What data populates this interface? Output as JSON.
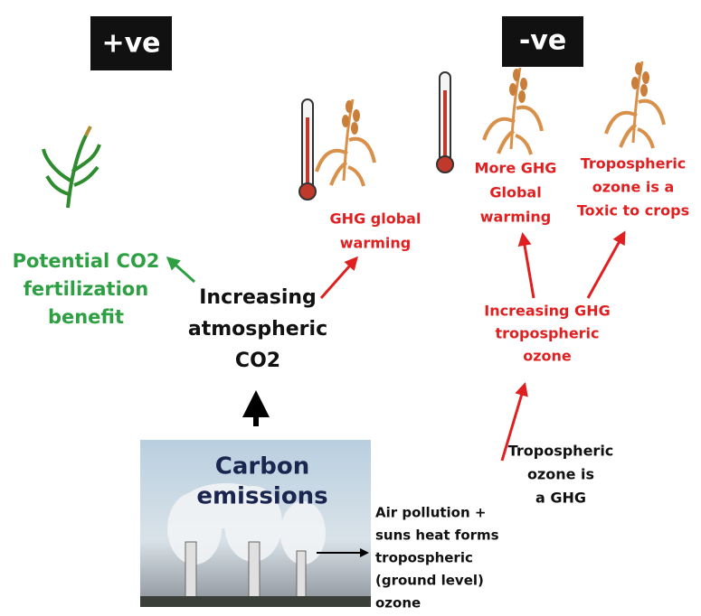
{
  "badges": [
    {
      "label": "+ve"
    },
    {
      "label": "-ve"
    }
  ],
  "nodes": [
    {
      "lines": [
        "Potential CO2",
        "fertilization",
        "benefit"
      ]
    },
    {
      "lines": [
        "Increasing",
        "atmospheric",
        "CO2"
      ]
    },
    {
      "lines": [
        "GHG global",
        "warming"
      ]
    },
    {
      "lines": [
        "More GHG",
        "Global",
        "warming"
      ]
    },
    {
      "lines": [
        "Tropospheric",
        "ozone is a",
        "Toxic to crops"
      ]
    },
    {
      "lines": [
        "Increasing GHG",
        "tropospheric",
        "ozone"
      ]
    },
    {
      "lines": [
        "Tropospheric",
        "ozone is",
        "a GHG"
      ]
    },
    {
      "lines": [
        "Carbon",
        "emissions"
      ]
    },
    {
      "lines": [
        "Air pollution +",
        "suns heat forms",
        "tropospheric",
        "(ground level)",
        "ozone"
      ]
    }
  ]
}
